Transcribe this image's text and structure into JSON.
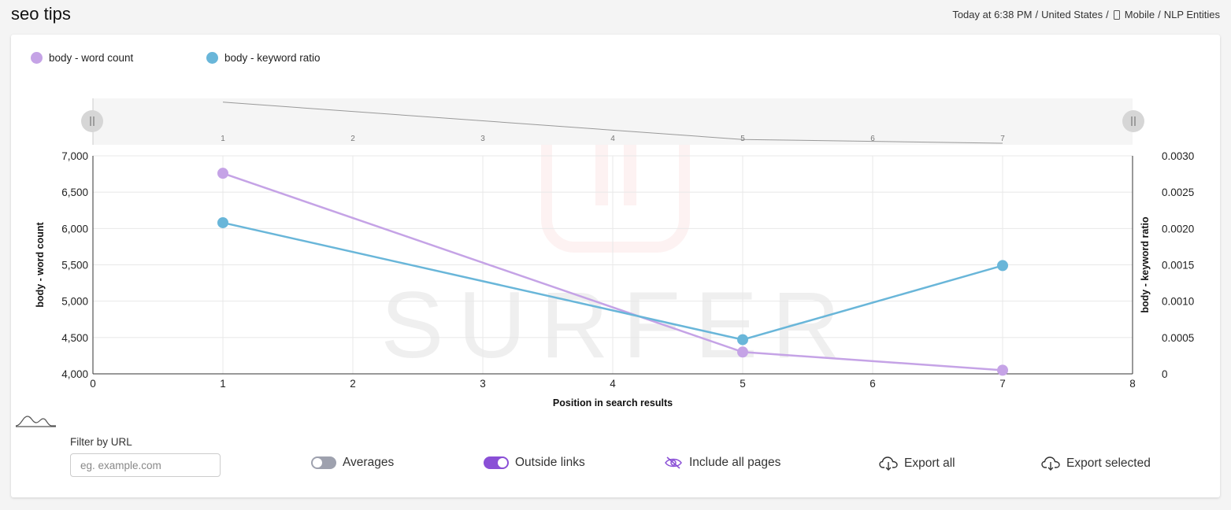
{
  "header": {
    "title": "seo tips",
    "meta_time": "Today at 6:38 PM",
    "meta_location": "United States",
    "meta_device": "Mobile",
    "meta_section": "NLP Entities",
    "separator": "/"
  },
  "legend": [
    {
      "label": "body - word count",
      "color": "#c5a3e6"
    },
    {
      "label": "body - keyword ratio",
      "color": "#69b6d9"
    }
  ],
  "watermark": "SURFER",
  "filter": {
    "label": "Filter by URL",
    "placeholder": "eg. example.com",
    "value": ""
  },
  "controls": {
    "averages_label": "Averages",
    "averages_on": false,
    "outside_links_label": "Outside links",
    "outside_links_on": true,
    "include_all_label": "Include all pages",
    "export_all_label": "Export all",
    "export_selected_label": "Export selected"
  },
  "icons": {
    "include_all": "eye-slash-icon",
    "export": "cloud-download-icon",
    "density": "density-curve-icon",
    "device": "mobile-phone-icon"
  },
  "chart_data": {
    "type": "line",
    "xlabel": "Position in search results",
    "xlim": [
      0,
      8
    ],
    "xticks": [
      "0",
      "1",
      "2",
      "3",
      "4",
      "5",
      "6",
      "7",
      "8"
    ],
    "y_left": {
      "label": "body - word count",
      "ylim": [
        4000,
        7000
      ],
      "ticks": [
        "4,000",
        "4,500",
        "5,000",
        "5,500",
        "6,000",
        "6,500",
        "7,000"
      ]
    },
    "y_right": {
      "label": "body - keyword ratio",
      "ylim": [
        0,
        0.003
      ],
      "ticks": [
        "0",
        "0.0005",
        "0.0010",
        "0.0015",
        "0.0020",
        "0.0025",
        "0.0030"
      ]
    },
    "series": [
      {
        "name": "body - word count",
        "axis": "left",
        "color": "#c5a3e6",
        "x": [
          1,
          5,
          7
        ],
        "y": [
          6760,
          4300,
          4050
        ]
      },
      {
        "name": "body - keyword ratio",
        "axis": "right",
        "color": "#69b6d9",
        "x": [
          1,
          5,
          7
        ],
        "y": [
          0.00208,
          0.00047,
          0.00149
        ]
      }
    ],
    "navigator": {
      "xticks": [
        "1",
        "2",
        "3",
        "4",
        "5",
        "6",
        "7"
      ],
      "series_x": [
        1,
        5,
        7
      ],
      "series_y": [
        6760,
        4300,
        4050
      ]
    },
    "grid": true
  }
}
